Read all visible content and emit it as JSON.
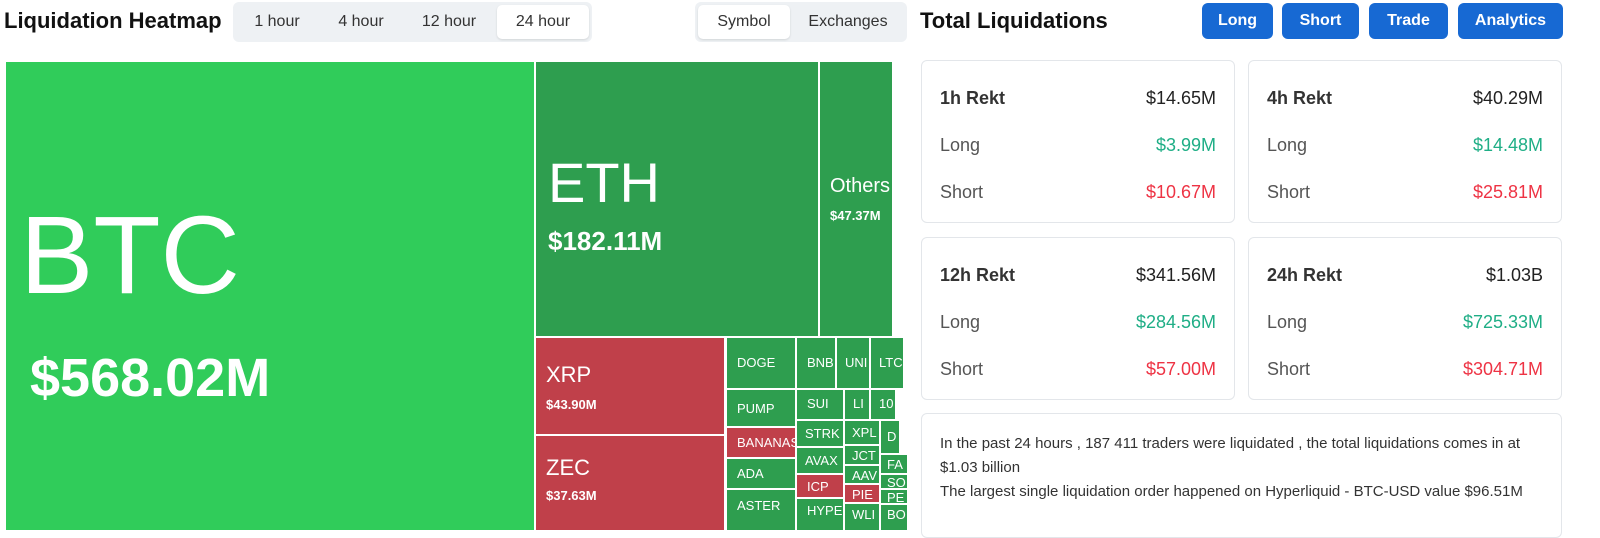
{
  "header": {
    "title": "Liquidation Heatmap",
    "time_tabs": [
      "1 hour",
      "4 hour",
      "12 hour",
      "24 hour"
    ],
    "view_tabs": [
      "Symbol",
      "Exchanges"
    ]
  },
  "treemap": {
    "cells": [
      {
        "symbol": "BTC",
        "value": "$568.02M"
      },
      {
        "symbol": "ETH",
        "value": "$182.11M"
      },
      {
        "symbol": "Others",
        "value": "$47.37M"
      },
      {
        "symbol": "XRP",
        "value": "$43.90M"
      },
      {
        "symbol": "ZEC",
        "value": "$37.63M"
      },
      {
        "symbol": "DOGE"
      },
      {
        "symbol": "PUMP"
      },
      {
        "symbol": "BANANAS"
      },
      {
        "symbol": "ADA"
      },
      {
        "symbol": "ASTER"
      },
      {
        "symbol": "BNB"
      },
      {
        "symbol": "UNI"
      },
      {
        "symbol": "LTC"
      },
      {
        "symbol": "SUI"
      },
      {
        "symbol": "LI"
      },
      {
        "symbol": "10"
      },
      {
        "symbol": "STRK"
      },
      {
        "symbol": "XPL"
      },
      {
        "symbol": "D"
      },
      {
        "symbol": "AVAX"
      },
      {
        "symbol": "JCT"
      },
      {
        "symbol": "AAV"
      },
      {
        "symbol": "ICP"
      },
      {
        "symbol": "PIE"
      },
      {
        "symbol": "HYPE"
      },
      {
        "symbol": "WLI"
      },
      {
        "symbol": "FA"
      },
      {
        "symbol": "SO"
      },
      {
        "symbol": "PE"
      },
      {
        "symbol": "BO"
      }
    ]
  },
  "summary": {
    "title": "Total Liquidations",
    "buttons": [
      "Long",
      "Short",
      "Trade",
      "Analytics"
    ],
    "cards": [
      {
        "period": "1h Rekt",
        "total": "$14.65M",
        "rows": [
          {
            "label": "Long",
            "value": "$3.99M"
          },
          {
            "label": "Short",
            "value": "$10.67M"
          }
        ]
      },
      {
        "period": "4h Rekt",
        "total": "$40.29M",
        "rows": [
          {
            "label": "Long",
            "value": "$14.48M"
          },
          {
            "label": "Short",
            "value": "$25.81M"
          }
        ]
      },
      {
        "period": "12h Rekt",
        "total": "$341.56M",
        "rows": [
          {
            "label": "Long",
            "value": "$284.56M"
          },
          {
            "label": "Short",
            "value": "$57.00M"
          }
        ]
      },
      {
        "period": "24h Rekt",
        "total": "$1.03B",
        "rows": [
          {
            "label": "Long",
            "value": "$725.33M"
          },
          {
            "label": "Short",
            "value": "$304.71M"
          }
        ]
      }
    ],
    "note": [
      "In the past 24 hours , 187 411 traders were liquidated , the total liquidations comes in at $1.03 billion",
      "The largest single liquidation order happened on Hyperliquid - BTC-USD value $96.51M"
    ]
  }
}
